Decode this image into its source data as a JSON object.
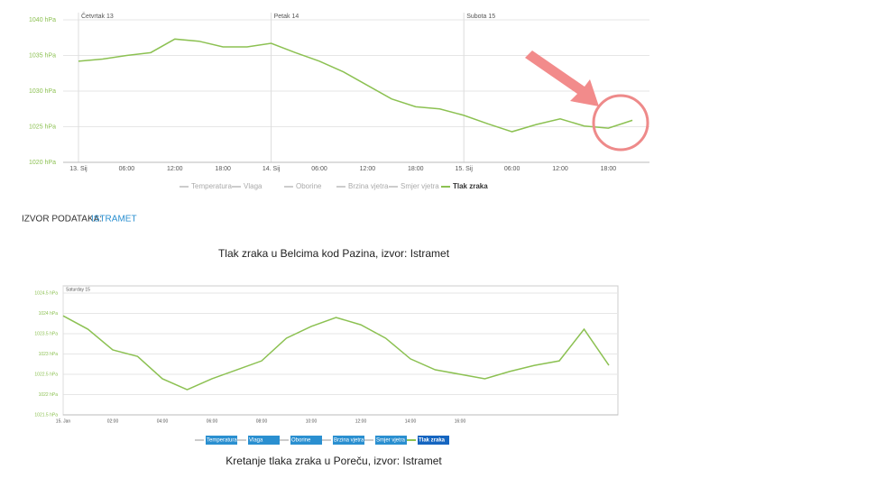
{
  "chart_data": [
    {
      "type": "line",
      "day_labels": [
        "Četvrtak 13",
        "Petak 14",
        "Subota 15"
      ],
      "categories": [
        "13. Sij",
        null,
        "06:00",
        null,
        "12:00",
        null,
        "18:00",
        null,
        "14. Sij",
        null,
        "06:00",
        null,
        "12:00",
        null,
        "18:00",
        null,
        "15. Sij",
        null,
        "06:00",
        null,
        "12:00",
        null,
        "18:00",
        null
      ],
      "series": [
        {
          "name": "Tlak zraka",
          "color": "#8cc152",
          "values": [
            1034.2,
            1034.5,
            1035.0,
            1035.4,
            1037.3,
            1037.0,
            1036.2,
            1036.2,
            1036.7,
            1035.4,
            1034.2,
            1032.7,
            1030.8,
            1028.9,
            1027.8,
            1027.5,
            1026.6,
            1025.4,
            1024.3,
            1025.3,
            1026.1,
            1025.1,
            1024.8,
            1025.9
          ]
        }
      ],
      "hidden_series": [
        "Temperatura",
        "Vlaga",
        "Oborine",
        "Brzina vjetra",
        "Smjer vjetra"
      ],
      "ylim": [
        1020,
        1040
      ],
      "yticks": [
        {
          "value": 1020,
          "label": "1020 hPa"
        },
        {
          "value": 1025,
          "label": "1025 hPa"
        },
        {
          "value": 1030,
          "label": "1030 hPa"
        },
        {
          "value": 1035,
          "label": "1035 hPa"
        },
        {
          "value": 1040,
          "label": "1040 hPa"
        }
      ],
      "grid": true
    },
    {
      "type": "line",
      "day_labels": [
        "Saturday 15"
      ],
      "categories": [
        "15. Jan",
        null,
        "02:00",
        null,
        "04:00",
        null,
        "06:00",
        null,
        "08:00",
        null,
        "10:00",
        null,
        "12:00",
        null,
        "14:00",
        null,
        "16:00",
        null,
        null,
        null,
        null,
        null,
        null
      ],
      "series": [
        {
          "name": "Tlak zraka",
          "color": "#8cc152",
          "values": [
            1023.94,
            1023.61,
            1023.1,
            1022.94,
            1022.39,
            1022.12,
            1022.39,
            1022.61,
            1022.83,
            1023.39,
            1023.68,
            1023.9,
            1023.72,
            1023.39,
            1022.88,
            1022.61,
            1022.5,
            1022.39,
            1022.57,
            1022.72,
            1022.83,
            1023.61,
            1022.72
          ]
        }
      ],
      "hidden_series": [
        "Temperatura",
        "Vlaga",
        "Oborine",
        "Brzina vjetra",
        "Smjer vjetra"
      ],
      "ylim": [
        1021.5,
        1024.5
      ],
      "yticks": [
        {
          "value": 1021.5,
          "label": "1021.5 hPa"
        },
        {
          "value": 1022,
          "label": "1022 hPa"
        },
        {
          "value": 1022.5,
          "label": "1022.5 hPa"
        },
        {
          "value": 1023,
          "label": "1023 hPa"
        },
        {
          "value": 1023.5,
          "label": "1023.5 hPa"
        },
        {
          "value": 1024,
          "label": "1024 hPa"
        },
        {
          "value": 1024.5,
          "label": "1024.5 hPa"
        }
      ],
      "grid": true
    }
  ],
  "source": {
    "label": "IZVOR PODATAKA:",
    "link": "ISTRAMET"
  },
  "captions": [
    "Tlak zraka u Belcima kod Pazina, izvor: Istramet",
    "Kretanje tlaka zraka u Poreču, izvor: Istramet"
  ]
}
